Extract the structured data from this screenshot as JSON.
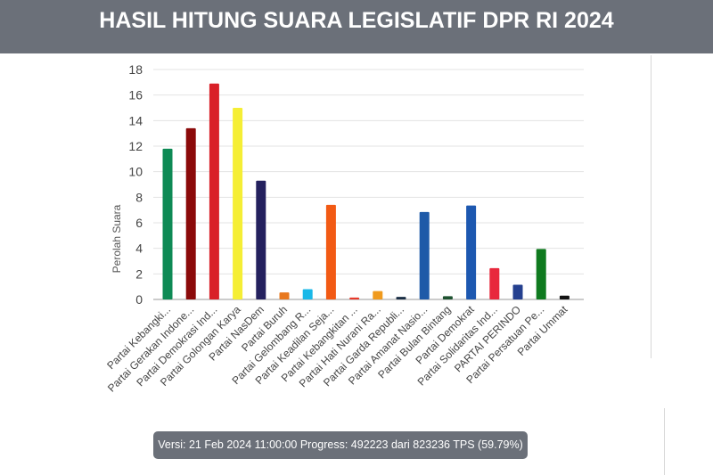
{
  "header": {
    "title": "HASIL HITUNG SUARA LEGISLATIF DPR RI 2024"
  },
  "status": {
    "text": "Versi: 21 Feb 2024 11:00:00 Progress: 492223 dari 823236 TPS (59.79%)"
  },
  "chart_data": {
    "type": "bar",
    "title": "",
    "xlabel": "",
    "ylabel": "Perolah Suara",
    "ylim": [
      0,
      18
    ],
    "yticks": [
      0,
      2,
      4,
      6,
      8,
      10,
      12,
      14,
      16,
      18
    ],
    "grid": true,
    "legend": "none",
    "categories": [
      "Partai Kebangki...",
      "Partai Gerakan Indone...",
      "Partai Demokrasi Ind...",
      "Partai Golongan Karya",
      "Partai NasDem",
      "Partai Buruh",
      "Partai Gelombang R...",
      "Partai Keadilan Seja...",
      "Partai Kebangkitan ...",
      "Partai Hati Nurani Ra...",
      "Partai Garda Republi...",
      "Partai Amanat Nasio...",
      "Partai Bulan Bintang",
      "Partai Demokrat",
      "Partai Solidaritas Ind...",
      "PARTAI PERINDO",
      "Partai Persatuan Pe...",
      "Partai Ummat"
    ],
    "values": [
      11.8,
      13.4,
      16.9,
      15.0,
      9.3,
      0.55,
      0.8,
      7.4,
      0.15,
      0.65,
      0.2,
      6.85,
      0.25,
      7.35,
      2.45,
      1.15,
      3.95,
      0.3
    ],
    "colors": [
      "#0e8a55",
      "#8b0a0a",
      "#d92028",
      "#f5ee35",
      "#24215e",
      "#e8781e",
      "#1ab8e8",
      "#f25a14",
      "#e8392a",
      "#f09a1d",
      "#1a2e45",
      "#1e5aa8",
      "#1e5230",
      "#1d58b0",
      "#e8283c",
      "#25408f",
      "#0f7a1f",
      "#141414"
    ]
  }
}
